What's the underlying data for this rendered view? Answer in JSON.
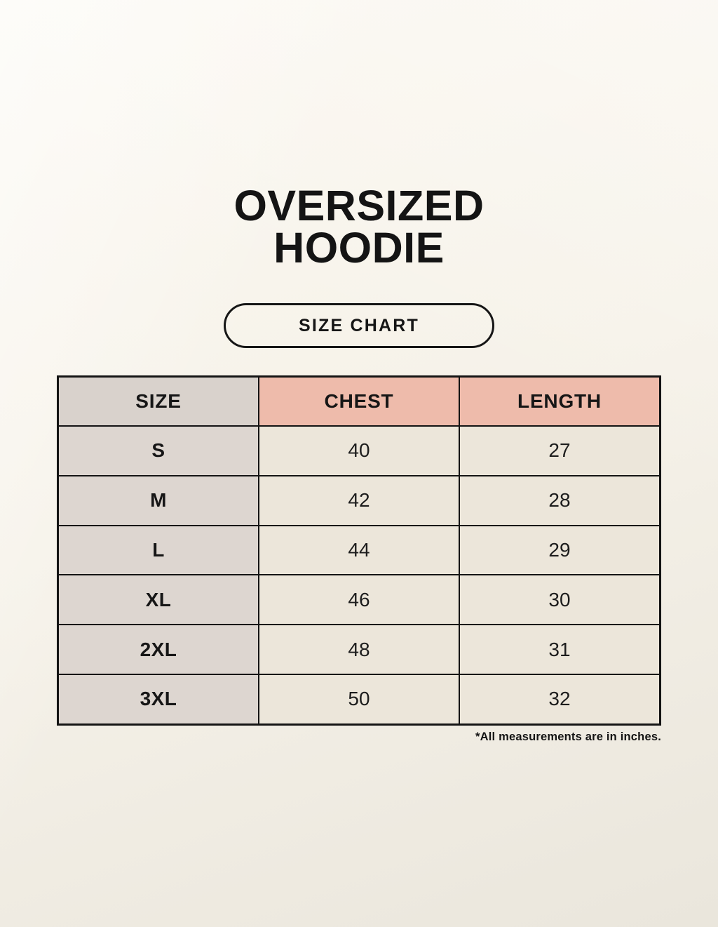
{
  "header": {
    "title_line1": "OVERSIZED",
    "title_line2": "HOODIE",
    "badge_label": "SIZE CHART"
  },
  "chart_data": {
    "type": "table",
    "title": "OVERSIZED HOODIE",
    "subtitle": "SIZE CHART",
    "columns": [
      "SIZE",
      "CHEST",
      "LENGTH"
    ],
    "rows": [
      [
        "S",
        "40",
        "27"
      ],
      [
        "M",
        "42",
        "28"
      ],
      [
        "L",
        "44",
        "29"
      ],
      [
        "XL",
        "46",
        "30"
      ],
      [
        "2XL",
        "48",
        "31"
      ],
      [
        "3XL",
        "50",
        "32"
      ]
    ],
    "units": "inches"
  },
  "footnote": "*All measurements are in inches.",
  "colors": {
    "background": "#f6f2e9",
    "size_column_bg": "#ddd6d0",
    "size_header_bg": "#d9d2cc",
    "accent_header_bg": "#eebbab",
    "value_cell_bg": "#ece6da",
    "table_border": "#141414",
    "text": "#161616"
  }
}
